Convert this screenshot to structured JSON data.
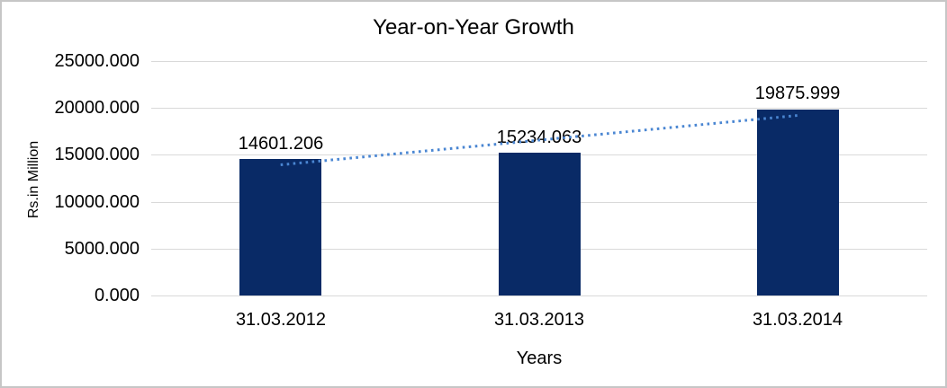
{
  "chart_data": {
    "type": "bar",
    "title": "Year-on-Year Growth",
    "categories": [
      "31.03.2012",
      "31.03.2013",
      "31.03.2014"
    ],
    "values": [
      14601.206,
      15234.063,
      19875.999
    ],
    "value_labels": [
      "14601.206",
      "15234.063",
      "19875.999"
    ],
    "xlabel": "Years",
    "ylabel": "Rs.in Million",
    "ylim": [
      0,
      25000
    ],
    "ytick_step": 5000,
    "ytick_labels": [
      "0.000",
      "5000.000",
      "10000.000",
      "15000.000",
      "20000.000",
      "25000.000"
    ],
    "grid": true,
    "legend": "none",
    "trendline": {
      "type": "linear",
      "style": "dotted",
      "applies_to": "values"
    },
    "colors": {
      "bar": "#092a66",
      "gridline": "#d9d9d9",
      "trendline": "#4a86d2",
      "text": "#000000",
      "frame_border": "#c6c6c6",
      "background": "#ffffff"
    }
  }
}
